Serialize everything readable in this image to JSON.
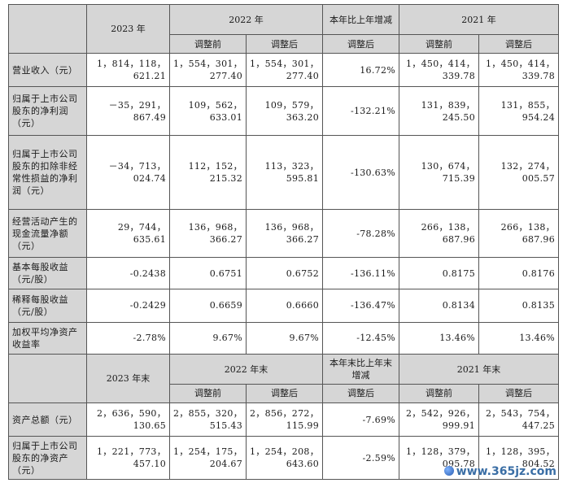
{
  "header1": {
    "c2023": "2023 年",
    "c2022": "2022 年",
    "change": "本年比上年增减",
    "c2021": "2021 年",
    "before": "调整前",
    "after": "调整后"
  },
  "rows1": [
    {
      "label": "营业收入（元）",
      "v2023": "1，814，118，621.21",
      "v2022a": "1，554，301，277.40",
      "v2022b": "1，554，301，277.40",
      "chg": "16.72%",
      "v2021a": "1，450，414，339.78",
      "v2021b": "1，450，414，339.78"
    },
    {
      "label": "归属于上市公司股东的净利润（元）",
      "v2023": "－35，291，867.49",
      "v2022a": "109，562，633.01",
      "v2022b": "109，579，363.20",
      "chg": "-132.21%",
      "v2021a": "131，839，245.50",
      "v2021b": "131，855，954.24"
    },
    {
      "label": "归属于上市公司股东的扣除非经常性损益的净利润（元）",
      "v2023": "－34，713，024.74",
      "v2022a": "112，152，215.32",
      "v2022b": "113，323，595.81",
      "chg": "-130.63%",
      "v2021a": "130，674，715.39",
      "v2021b": "132，274，005.57"
    },
    {
      "label": "经营活动产生的现金流量净额（元）",
      "v2023": "29，744，635.61",
      "v2022a": "136，968，366.27",
      "v2022b": "136，968，366.27",
      "chg": "-78.28%",
      "v2021a": "266，138，687.96",
      "v2021b": "266，138，687.96"
    },
    {
      "label": "基本每股收益（元/股）",
      "v2023": "-0.2438",
      "v2022a": "0.6751",
      "v2022b": "0.6752",
      "chg": "-136.11%",
      "v2021a": "0.8175",
      "v2021b": "0.8176"
    },
    {
      "label": "稀释每股收益（元/股）",
      "v2023": "-0.2429",
      "v2022a": "0.6659",
      "v2022b": "0.6660",
      "chg": "-136.47%",
      "v2021a": "0.8134",
      "v2021b": "0.8135"
    },
    {
      "label": "加权平均净资产收益率",
      "v2023": "-2.78%",
      "v2022a": "9.67%",
      "v2022b": "9.67%",
      "chg": "-12.45%",
      "v2021a": "13.46%",
      "v2021b": "13.46%"
    }
  ],
  "header2": {
    "c2023": "2023 年末",
    "c2022": "2022 年末",
    "change": "本年末比上年末增减",
    "c2021": "2021 年末",
    "before": "调整前",
    "after": "调整后"
  },
  "rows2": [
    {
      "label": "资产总额（元）",
      "v2023": "2，636，590，130.65",
      "v2022a": "2，855，320，515.43",
      "v2022b": "2，856，272，115.99",
      "chg": "-7.69%",
      "v2021a": "2，542，926，999.91",
      "v2021b": "2，543，754，447.25"
    },
    {
      "label": "归属于上市公司股东的净资产（元）",
      "v2023": "1，221，773，457.10",
      "v2022a": "1，254，175，204.67",
      "v2022b": "1，254，208，643.60",
      "chg": "-2.59%",
      "v2021a": "1，128，379，095.78",
      "v2021b": "1，128，395，804.52"
    }
  ],
  "watermark": "www.365jz.com"
}
